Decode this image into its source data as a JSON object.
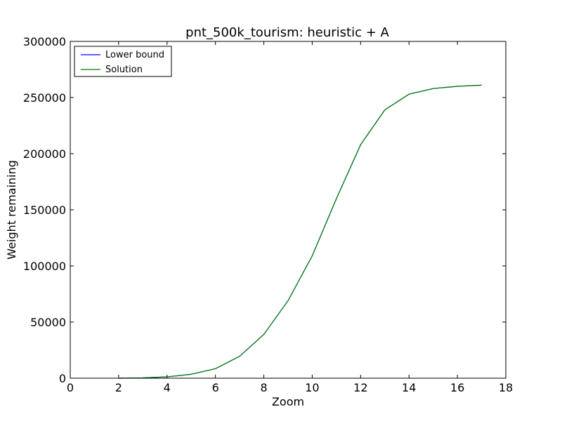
{
  "chart_data": {
    "type": "line",
    "title": "pnt_500k_tourism: heuristic + A",
    "xlabel": "Zoom",
    "ylabel": "Weight remaining",
    "xlim": [
      0,
      18
    ],
    "ylim": [
      0,
      300000
    ],
    "xticks": [
      0,
      2,
      4,
      6,
      8,
      10,
      12,
      14,
      16,
      18
    ],
    "yticks": [
      0,
      50000,
      100000,
      150000,
      200000,
      250000,
      300000
    ],
    "x_tick_labels": [
      "0",
      "2",
      "4",
      "6",
      "8",
      "10",
      "12",
      "14",
      "16",
      "18"
    ],
    "y_tick_labels": [
      "0",
      "50000",
      "100000",
      "150000",
      "200000",
      "250000",
      "300000"
    ],
    "grid": false,
    "legend_position": "top-left",
    "x": [
      2,
      3,
      4,
      5,
      6,
      7,
      8,
      9,
      10,
      11,
      12,
      13,
      14,
      15,
      16,
      17
    ],
    "series": [
      {
        "name": "Lower bound",
        "color": "#0000ff",
        "values": [
          0,
          300,
          1200,
          3500,
          8500,
          19500,
          39000,
          69000,
          109000,
          160000,
          208000,
          239000,
          253000,
          258000,
          260000,
          261000
        ]
      },
      {
        "name": "Solution",
        "color": "#008000",
        "values": [
          0,
          300,
          1200,
          3500,
          8500,
          19500,
          39000,
          69000,
          109000,
          160000,
          208000,
          239000,
          253000,
          258000,
          260000,
          261000
        ]
      }
    ]
  }
}
